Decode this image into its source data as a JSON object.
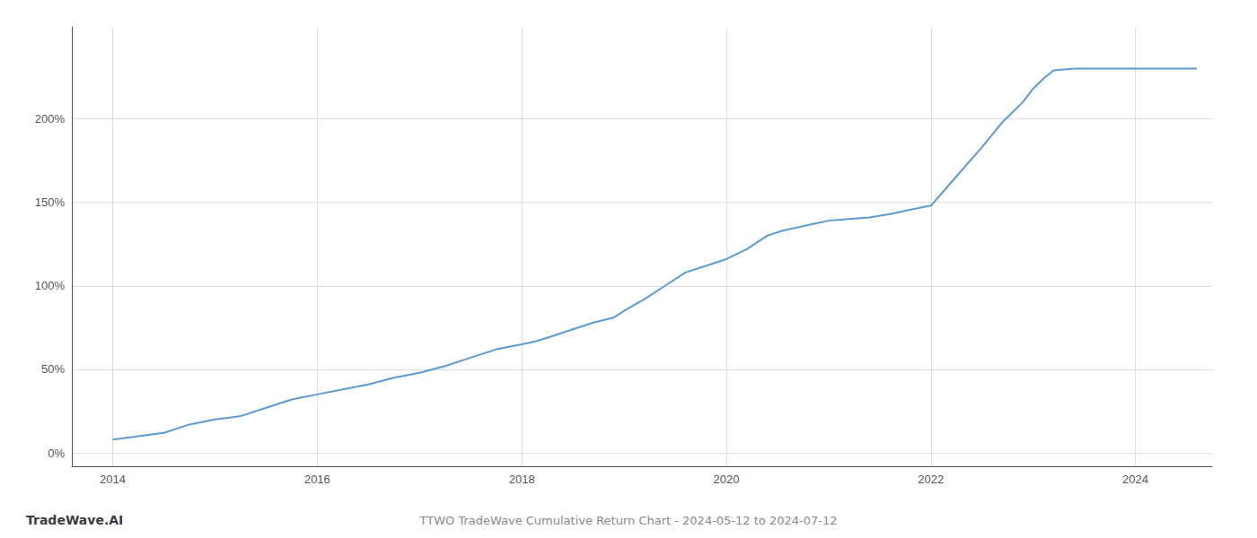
{
  "chart_data": {
    "type": "line",
    "title": "TTWO TradeWave Cumulative Return Chart - 2024-05-12 to 2024-07-12",
    "annotations": [
      "TradeWave.AI"
    ],
    "x": [
      2014.0,
      2014.25,
      2014.5,
      2014.75,
      2015.0,
      2015.25,
      2015.5,
      2015.75,
      2016.0,
      2016.25,
      2016.5,
      2016.75,
      2017.0,
      2017.25,
      2017.5,
      2017.75,
      2018.0,
      2018.15,
      2018.3,
      2018.5,
      2018.7,
      2018.9,
      2019.0,
      2019.2,
      2019.4,
      2019.6,
      2019.8,
      2020.0,
      2020.2,
      2020.4,
      2020.55,
      2020.7,
      2020.85,
      2021.0,
      2021.2,
      2021.4,
      2021.6,
      2021.75,
      2022.0,
      2022.2,
      2022.5,
      2022.7,
      2022.9,
      2023.0,
      2023.1,
      2023.2,
      2023.4,
      2023.6,
      2023.8,
      2024.0,
      2024.2,
      2024.4,
      2024.6
    ],
    "values": [
      8,
      10,
      12,
      17,
      20,
      22,
      27,
      32,
      35,
      38,
      41,
      45,
      48,
      52,
      57,
      62,
      65,
      67,
      70,
      74,
      78,
      81,
      85,
      92,
      100,
      108,
      112,
      116,
      122,
      130,
      133,
      135,
      137,
      139,
      140,
      141,
      143,
      145,
      148,
      162,
      183,
      198,
      210,
      218,
      224,
      229,
      230,
      230,
      230,
      230,
      230,
      230,
      230
    ],
    "color": "#5b9bd5",
    "xlim": [
      2013.6,
      2024.75
    ],
    "ylim": [
      -8,
      255
    ],
    "xticks": [
      2014,
      2016,
      2018,
      2020,
      2022,
      2024
    ],
    "yticks": [
      {
        "value": 0,
        "label": "0%"
      },
      {
        "value": 50,
        "label": "50%"
      },
      {
        "value": 100,
        "label": "100%"
      },
      {
        "value": 150,
        "label": "150%"
      },
      {
        "value": 200,
        "label": "200%"
      }
    ],
    "grid": true
  }
}
